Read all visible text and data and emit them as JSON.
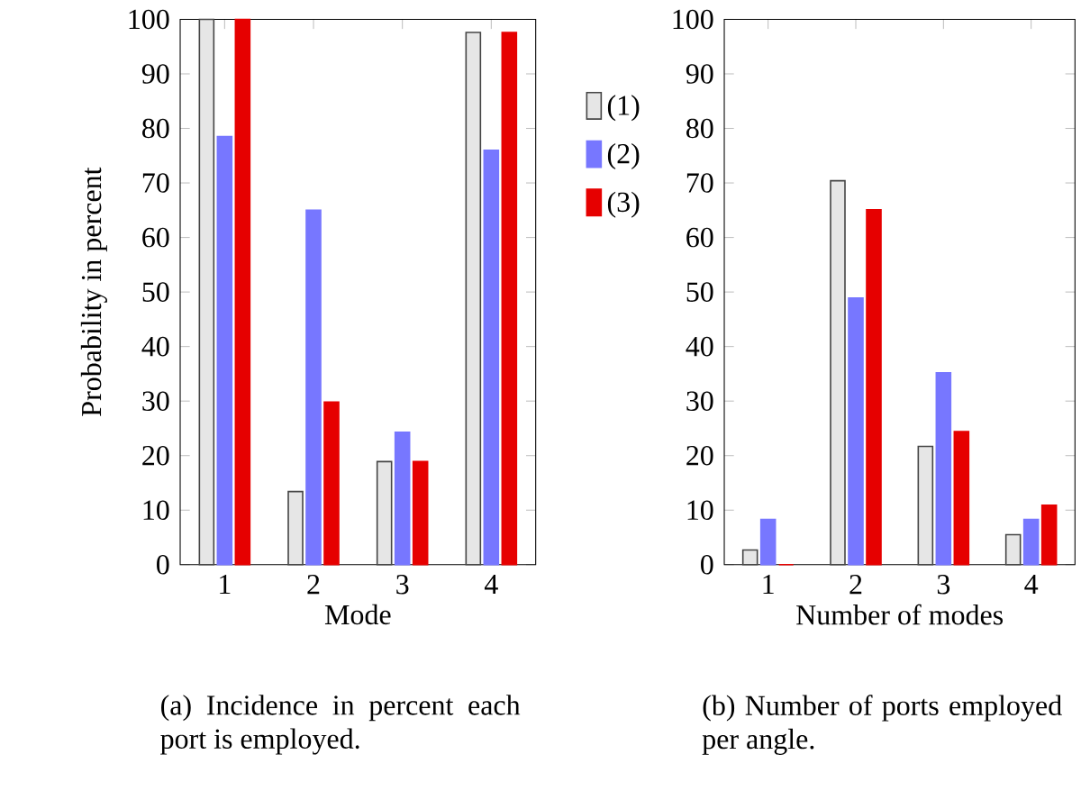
{
  "chart_data": [
    {
      "type": "bar",
      "categories": [
        "1",
        "2",
        "3",
        "4"
      ],
      "xlabel": "Mode",
      "ylabel": "Probability in percent",
      "ylim": [
        0,
        100
      ],
      "yticks": [
        0,
        10,
        20,
        30,
        40,
        50,
        60,
        70,
        80,
        90,
        100
      ],
      "legend": "right",
      "annotations": [
        "(a) Incidence in percent each port is employed."
      ],
      "series": [
        {
          "name": "(1)",
          "color": "#e6e6e6",
          "values": [
            100,
            13.4,
            18.9,
            97.6
          ]
        },
        {
          "name": "(2)",
          "color": "#7777ff",
          "values": [
            78.5,
            65,
            24.3,
            76
          ]
        },
        {
          "name": "(3)",
          "color": "#e60000",
          "values": [
            100,
            29.8,
            18.9,
            97.6
          ]
        }
      ]
    },
    {
      "type": "bar",
      "categories": [
        "1",
        "2",
        "3",
        "4"
      ],
      "xlabel": "Number of modes",
      "ylim": [
        0,
        100
      ],
      "yticks": [
        0,
        10,
        20,
        30,
        40,
        50,
        60,
        70,
        80,
        90,
        100
      ],
      "annotations": [
        "(b) Number of ports employed per angle."
      ],
      "series": [
        {
          "color": "#e6e6e6",
          "values": [
            2.7,
            70.4,
            21.7,
            5.5
          ]
        },
        {
          "color": "#7777ff",
          "values": [
            8.3,
            48.9,
            35.2,
            8.3
          ]
        },
        {
          "color": "#e60000",
          "values": [
            0,
            65.1,
            24.4,
            10.9
          ]
        }
      ]
    }
  ]
}
